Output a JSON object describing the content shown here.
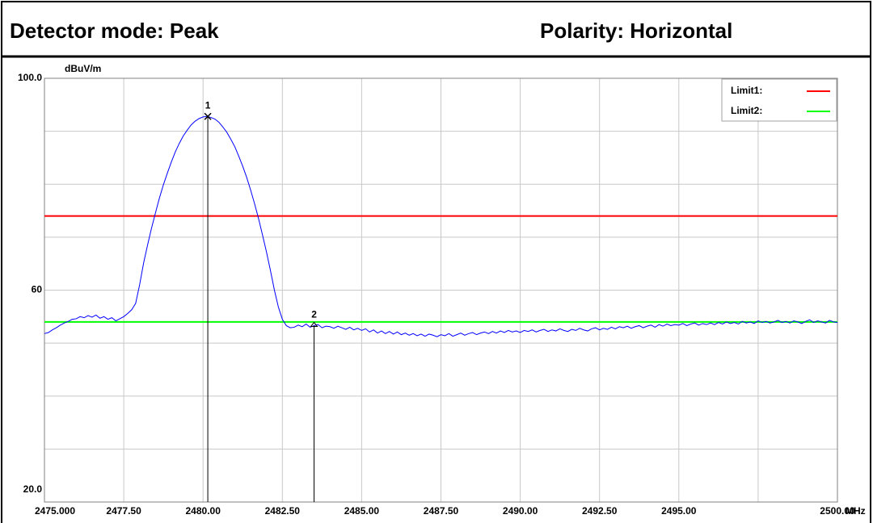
{
  "header": {
    "left": "Detector mode: Peak",
    "right": "Polarity: Horizontal"
  },
  "chart_data": {
    "type": "line",
    "x_unit": "MHz",
    "y_unit": "dBuV/m",
    "xlim": [
      2475,
      2500
    ],
    "ylim": [
      20,
      100
    ],
    "xticks": [
      {
        "value": 2475,
        "label": "2475.000"
      },
      {
        "value": 2477.5,
        "label": "2477.50"
      },
      {
        "value": 2480,
        "label": "2480.00"
      },
      {
        "value": 2482.5,
        "label": "2482.50"
      },
      {
        "value": 2485,
        "label": "2485.00"
      },
      {
        "value": 2487.5,
        "label": "2487.50"
      },
      {
        "value": 2490,
        "label": "2490.00"
      },
      {
        "value": 2492.5,
        "label": "2492.50"
      },
      {
        "value": 2495,
        "label": "2495.00"
      },
      {
        "value": 2497.5,
        "label": null
      },
      {
        "value": 2500,
        "label": "2500.00"
      }
    ],
    "yticks": [
      {
        "value": 20,
        "label": "20.0"
      },
      {
        "value": 30,
        "label": null
      },
      {
        "value": 40,
        "label": null
      },
      {
        "value": 50,
        "label": null
      },
      60,
      {
        "value": 70,
        "label": null
      },
      {
        "value": 80,
        "label": null
      },
      {
        "value": 90,
        "label": null
      },
      {
        "value": 100,
        "label": "100.0"
      }
    ],
    "grid": true,
    "legend": "upper right",
    "limits": [
      {
        "name": "Limit1:",
        "color": "#ff0000",
        "value": 74
      },
      {
        "name": "Limit2:",
        "color": "#00ff00",
        "value": 54
      }
    ],
    "markers": [
      {
        "label": "1",
        "x": 2480.15,
        "y": 92.8
      },
      {
        "label": "2",
        "x": 2483.5,
        "y": 53.3
      }
    ],
    "x": [
      2475,
      2475.125,
      2475.25,
      2475.375,
      2475.5,
      2475.625,
      2475.75,
      2475.875,
      2476,
      2476.125,
      2476.25,
      2476.375,
      2476.5,
      2476.625,
      2476.75,
      2476.875,
      2477,
      2477.125,
      2477.25,
      2477.375,
      2477.5,
      2477.625,
      2477.75,
      2477.875,
      2478,
      2478.125,
      2478.25,
      2478.375,
      2478.5,
      2478.625,
      2478.75,
      2478.875,
      2479,
      2479.125,
      2479.25,
      2479.375,
      2479.5,
      2479.625,
      2479.75,
      2479.875,
      2480,
      2480.125,
      2480.25,
      2480.375,
      2480.5,
      2480.625,
      2480.75,
      2480.875,
      2481,
      2481.125,
      2481.25,
      2481.375,
      2481.5,
      2481.625,
      2481.75,
      2481.875,
      2482,
      2482.125,
      2482.25,
      2482.375,
      2482.5,
      2482.625,
      2482.75,
      2482.875,
      2483,
      2483.125,
      2483.25,
      2483.375,
      2483.5,
      2483.625,
      2483.75,
      2483.875,
      2484,
      2484.125,
      2484.25,
      2484.375,
      2484.5,
      2484.625,
      2484.75,
      2484.875,
      2485,
      2485.125,
      2485.25,
      2485.375,
      2485.5,
      2485.625,
      2485.75,
      2485.875,
      2486,
      2486.125,
      2486.25,
      2486.375,
      2486.5,
      2486.625,
      2486.75,
      2486.875,
      2487,
      2487.125,
      2487.25,
      2487.375,
      2487.5,
      2487.625,
      2487.75,
      2487.875,
      2488,
      2488.125,
      2488.25,
      2488.375,
      2488.5,
      2488.625,
      2488.75,
      2488.875,
      2489,
      2489.125,
      2489.25,
      2489.375,
      2489.5,
      2489.625,
      2489.75,
      2489.875,
      2490,
      2490.125,
      2490.25,
      2490.375,
      2490.5,
      2490.625,
      2490.75,
      2490.875,
      2491,
      2491.125,
      2491.25,
      2491.375,
      2491.5,
      2491.625,
      2491.75,
      2491.875,
      2492,
      2492.125,
      2492.25,
      2492.375,
      2492.5,
      2492.625,
      2492.75,
      2492.875,
      2493,
      2493.125,
      2493.25,
      2493.375,
      2493.5,
      2493.625,
      2493.75,
      2493.875,
      2494,
      2494.125,
      2494.25,
      2494.375,
      2494.5,
      2494.625,
      2494.75,
      2494.875,
      2495,
      2495.125,
      2495.25,
      2495.375,
      2495.5,
      2495.625,
      2495.75,
      2495.875,
      2496,
      2496.125,
      2496.25,
      2496.375,
      2496.5,
      2496.625,
      2496.75,
      2496.875,
      2497,
      2497.125,
      2497.25,
      2497.375,
      2497.5,
      2497.625,
      2497.75,
      2497.875,
      2498,
      2498.125,
      2498.25,
      2498.375,
      2498.5,
      2498.625,
      2498.75,
      2498.875,
      2499,
      2499.125,
      2499.25,
      2499.375,
      2499.5,
      2499.625,
      2499.75,
      2499.875,
      2500
    ],
    "series": [
      {
        "color": "#0000ff",
        "values": [
          51.8,
          52.0,
          52.5,
          52.9,
          53.4,
          53.8,
          54.1,
          54.5,
          54.6,
          55.0,
          54.8,
          55.2,
          54.9,
          55.3,
          54.7,
          55.0,
          54.5,
          54.8,
          54.2,
          54.6,
          55.0,
          55.6,
          56.3,
          57.5,
          61.0,
          65.1,
          68.5,
          71.7,
          74.6,
          77.4,
          79.9,
          82.1,
          84.2,
          86.1,
          87.7,
          89.1,
          90.2,
          91.2,
          91.9,
          92.4,
          92.7,
          92.8,
          92.6,
          92.3,
          91.7,
          90.8,
          89.8,
          88.5,
          87.1,
          85.3,
          83.4,
          81.3,
          78.9,
          76.3,
          73.5,
          70.4,
          67.2,
          63.7,
          60.0,
          56.8,
          54.5,
          53.3,
          52.9,
          53.0,
          53.4,
          53.1,
          53.6,
          53.0,
          53.3,
          53.5,
          52.9,
          53.2,
          53.1,
          52.8,
          53.2,
          52.9,
          52.6,
          53.0,
          52.5,
          52.8,
          52.4,
          52.7,
          52.1,
          52.5,
          51.9,
          52.3,
          51.8,
          52.2,
          51.7,
          52.1,
          51.6,
          51.9,
          51.5,
          51.8,
          51.4,
          51.7,
          51.3,
          51.7,
          51.5,
          51.2,
          51.6,
          51.4,
          51.8,
          51.3,
          51.6,
          51.9,
          51.5,
          51.8,
          52.0,
          51.6,
          51.9,
          52.1,
          51.8,
          52.2,
          51.9,
          52.3,
          52.0,
          52.4,
          52.1,
          52.3,
          52.0,
          52.4,
          52.2,
          52.5,
          52.1,
          52.4,
          52.6,
          52.2,
          52.5,
          52.3,
          52.7,
          52.4,
          52.2,
          52.6,
          52.4,
          52.8,
          52.5,
          52.3,
          52.7,
          52.9,
          52.5,
          52.8,
          52.6,
          53.0,
          52.7,
          53.1,
          52.9,
          53.2,
          52.8,
          53.1,
          53.3,
          52.9,
          53.2,
          53.4,
          53.0,
          53.5,
          53.2,
          53.6,
          53.3,
          53.5,
          53.4,
          53.7,
          53.3,
          53.6,
          53.8,
          53.4,
          53.7,
          53.5,
          53.8,
          53.5,
          53.9,
          53.6,
          54.0,
          53.7,
          53.9,
          53.6,
          54.1,
          53.8,
          54.0,
          53.7,
          54.2,
          53.9,
          54.1,
          53.8,
          54.0,
          54.3,
          53.9,
          54.1,
          53.8,
          54.2,
          54.0,
          53.7,
          54.1,
          54.4,
          53.9,
          54.2,
          54.0,
          53.8,
          54.3,
          54.0,
          53.9
        ]
      }
    ]
  }
}
